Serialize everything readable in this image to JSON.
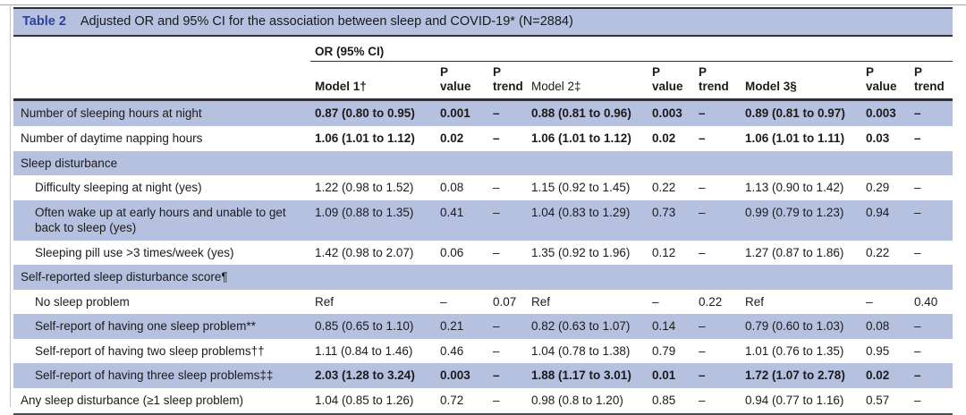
{
  "title": {
    "label": "Table 2",
    "text": "Adjusted OR and 95% CI for the association between sleep and COVID-19* (N=2884)"
  },
  "table": {
    "group_header": "OR (95% CI)",
    "columns": [
      {
        "label": "Model 1†",
        "bold": true
      },
      {
        "label": "P\nvalue",
        "bold": true
      },
      {
        "label": "P\ntrend",
        "bold": true
      },
      {
        "label": "Model 2‡",
        "bold": false
      },
      {
        "label": "P\nvalue",
        "bold": true
      },
      {
        "label": "P\ntrend",
        "bold": true
      },
      {
        "label": "Model 3§",
        "bold": true
      },
      {
        "label": "P value",
        "bold": true
      },
      {
        "label": "P\ntrend",
        "bold": true
      }
    ],
    "rows": [
      {
        "label": "Number of sleeping hours at night",
        "section": false,
        "indent": false,
        "bold": true,
        "shaded": true,
        "values": [
          "0.87 (0.80 to 0.95)",
          "0.001",
          "–",
          "0.88 (0.81 to 0.96)",
          "0.003",
          "–",
          "0.89 (0.81 to 0.97)",
          "0.003",
          "–"
        ]
      },
      {
        "label": "Number of daytime napping hours",
        "section": false,
        "indent": false,
        "bold": true,
        "shaded": false,
        "values": [
          "1.06 (1.01 to 1.12)",
          "0.02",
          "–",
          "1.06 (1.01 to 1.12)",
          "0.02",
          "–",
          "1.06 (1.01 to 1.11)",
          "0.03",
          "–"
        ]
      },
      {
        "label": "Sleep disturbance",
        "section": true,
        "indent": false,
        "bold": false,
        "shaded": true,
        "values": []
      },
      {
        "label": "Difficulty sleeping at night (yes)",
        "section": false,
        "indent": true,
        "bold": false,
        "shaded": false,
        "values": [
          "1.22 (0.98 to 1.52)",
          "0.08",
          "–",
          "1.15 (0.92 to 1.45)",
          "0.22",
          "–",
          "1.13 (0.90 to 1.42)",
          "0.29",
          "–"
        ]
      },
      {
        "label": "Often wake up at early hours and unable to get back to sleep (yes)",
        "section": false,
        "indent": true,
        "bold": false,
        "shaded": true,
        "values": [
          "1.09 (0.88 to 1.35)",
          "0.41",
          "–",
          "1.04 (0.83 to 1.29)",
          "0.73",
          "–",
          "0.99 (0.79 to 1.23)",
          "0.94",
          "–"
        ]
      },
      {
        "label": "Sleeping pill use >3 times/week (yes)",
        "section": false,
        "indent": true,
        "bold": false,
        "shaded": false,
        "values": [
          "1.42 (0.98 to 2.07)",
          "0.06",
          "–",
          "1.35 (0.92 to 1.96)",
          "0.12",
          "–",
          "1.27 (0.87 to 1.86)",
          "0.22",
          "–"
        ]
      },
      {
        "label": "Self-reported sleep disturbance score¶",
        "section": true,
        "indent": false,
        "bold": false,
        "shaded": true,
        "values": []
      },
      {
        "label": "No sleep problem",
        "section": false,
        "indent": true,
        "bold": false,
        "shaded": false,
        "values": [
          "Ref",
          "–",
          "0.07",
          "Ref",
          "–",
          "0.22",
          "Ref",
          "–",
          "0.40"
        ]
      },
      {
        "label": "Self-report of having one sleep problem**",
        "section": false,
        "indent": true,
        "bold": false,
        "shaded": true,
        "values": [
          "0.85 (0.65 to 1.10)",
          "0.21",
          "–",
          "0.82 (0.63 to 1.07)",
          "0.14",
          "–",
          "0.79 (0.60 to 1.03)",
          "0.08",
          "–"
        ]
      },
      {
        "label": "Self-report of having two sleep problems††",
        "section": false,
        "indent": true,
        "bold": false,
        "shaded": false,
        "values": [
          "1.11 (0.84 to 1.46)",
          "0.46",
          "–",
          "1.04 (0.78 to 1.38)",
          "0.79",
          "–",
          "1.01 (0.76 to 1.35)",
          "0.95",
          "–"
        ]
      },
      {
        "label": "Self-report of having three sleep problems‡‡",
        "section": false,
        "indent": true,
        "bold": true,
        "shaded": true,
        "values": [
          "2.03 (1.28 to 3.24)",
          "0.003",
          "–",
          "1.88 (1.17 to 3.01)",
          "0.01",
          "–",
          "1.72 (1.07 to 2.78)",
          "0.02",
          "–"
        ]
      },
      {
        "label": "Any sleep disturbance (≥1 sleep problem)",
        "section": false,
        "indent": false,
        "bold": false,
        "shaded": false,
        "values": [
          "1.04 (0.85 to 1.26)",
          "0.72",
          "–",
          "0.98 (0.8 to 1.20)",
          "0.85",
          "–",
          "0.94 (0.77 to 1.16)",
          "0.57",
          "–"
        ]
      }
    ]
  },
  "colors": {
    "row_shade": "#b6c1e0",
    "title_label": "#2f3f9c",
    "rule_dark": "#30303c"
  }
}
